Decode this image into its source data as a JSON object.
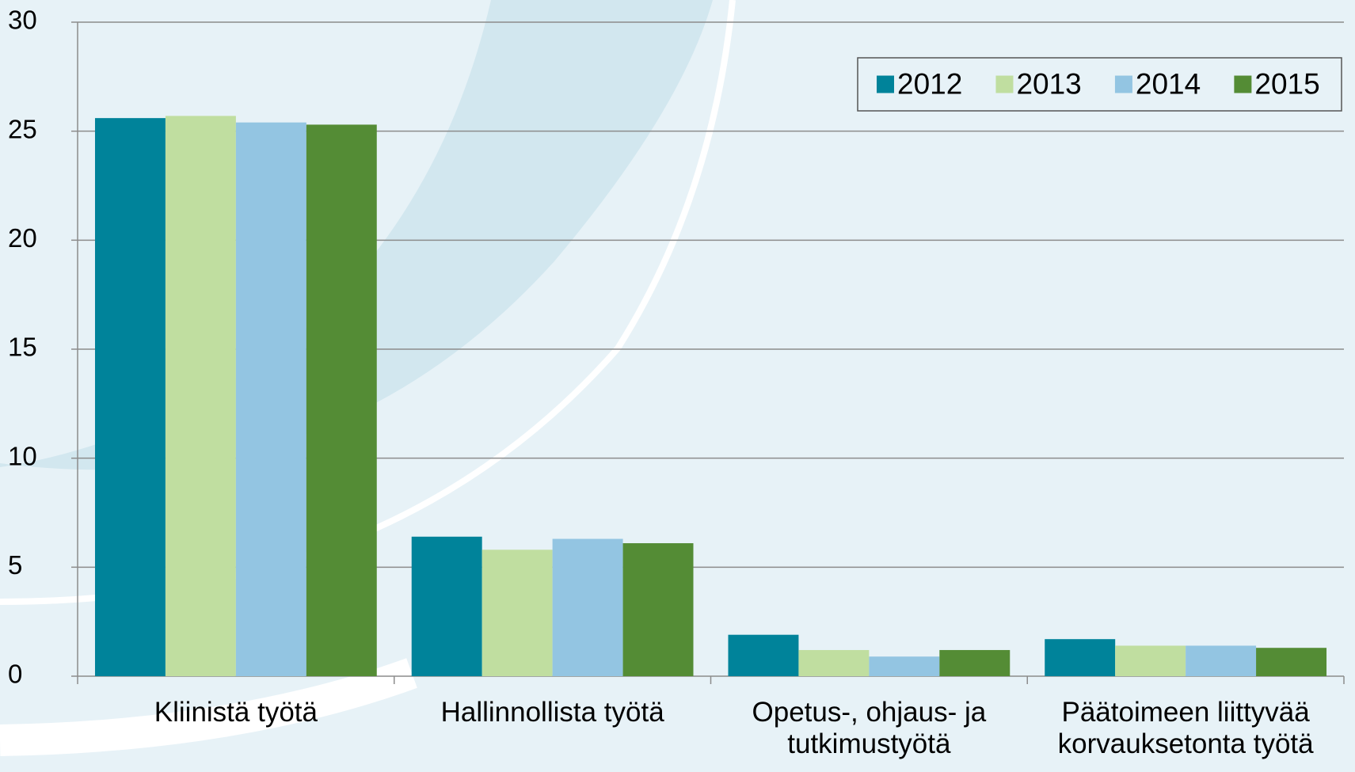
{
  "chart_data": {
    "type": "bar",
    "categories": [
      "Kliinistä työtä",
      "Hallinnollista työtä",
      "Opetus-, ohjaus- ja tutkimustyötä",
      "Päätoimeen liittyvää korvauksetonta työtä"
    ],
    "series": [
      {
        "name": "2012",
        "color": "#00839a",
        "values": [
          25.6,
          6.4,
          1.9,
          1.7
        ]
      },
      {
        "name": "2013",
        "color": "#c0dea0",
        "values": [
          25.7,
          5.8,
          1.2,
          1.4
        ]
      },
      {
        "name": "2014",
        "color": "#93c5e2",
        "values": [
          25.4,
          6.3,
          0.9,
          1.4
        ]
      },
      {
        "name": "2015",
        "color": "#548c35",
        "values": [
          25.3,
          6.1,
          1.2,
          1.3
        ]
      }
    ],
    "ylim": [
      0,
      30
    ],
    "yticks": [
      0,
      5,
      10,
      15,
      20,
      25,
      30
    ],
    "grid": true,
    "legend": "upper right"
  }
}
